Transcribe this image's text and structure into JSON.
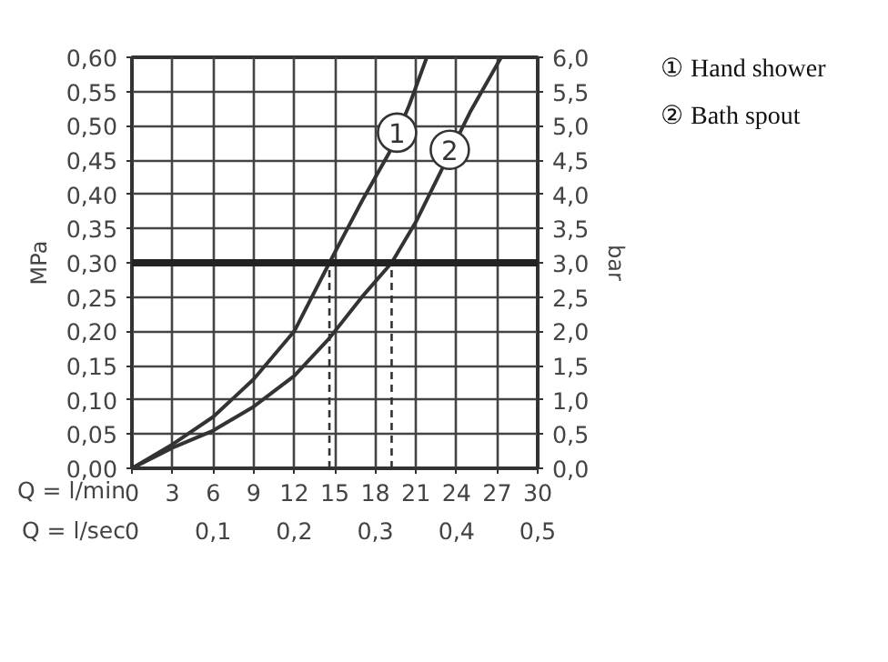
{
  "chart_data": {
    "type": "line",
    "xlabel": "Q = l/min",
    "x2label": "Q = l/sec",
    "ylabel": "MPa",
    "y2label": "bar",
    "xlim": [
      0,
      30
    ],
    "xticks": [
      0,
      3,
      6,
      9,
      12,
      15,
      18,
      21,
      24,
      27,
      30
    ],
    "x2lim": [
      0,
      0.5
    ],
    "x2ticks": [
      {
        "value": 0,
        "label": "0"
      },
      {
        "value": 0.1,
        "label": "0,1"
      },
      {
        "value": 0.2,
        "label": "0,2"
      },
      {
        "value": 0.3,
        "label": "0,3"
      },
      {
        "value": 0.4,
        "label": "0,4"
      },
      {
        "value": 0.5,
        "label": "0,5"
      }
    ],
    "ylim": [
      0,
      0.6
    ],
    "yticks": [
      {
        "value": 0,
        "label": "0,00"
      },
      {
        "value": 0.05,
        "label": "0,05"
      },
      {
        "value": 0.1,
        "label": "0,10"
      },
      {
        "value": 0.15,
        "label": "0,15"
      },
      {
        "value": 0.2,
        "label": "0,20"
      },
      {
        "value": 0.25,
        "label": "0,25"
      },
      {
        "value": 0.3,
        "label": "0,30"
      },
      {
        "value": 0.35,
        "label": "0,35"
      },
      {
        "value": 0.4,
        "label": "0,40"
      },
      {
        "value": 0.45,
        "label": "0,45"
      },
      {
        "value": 0.5,
        "label": "0,50"
      },
      {
        "value": 0.55,
        "label": "0,55"
      },
      {
        "value": 0.6,
        "label": "0,60"
      }
    ],
    "y2lim": [
      0,
      6
    ],
    "y2ticks": [
      {
        "value": 0,
        "label": "0,0"
      },
      {
        "value": 0.5,
        "label": "0,5"
      },
      {
        "value": 1,
        "label": "1,0"
      },
      {
        "value": 1.5,
        "label": "1,5"
      },
      {
        "value": 2,
        "label": "2,0"
      },
      {
        "value": 2.5,
        "label": "2,5"
      },
      {
        "value": 3,
        "label": "3,0"
      },
      {
        "value": 3.5,
        "label": "3,5"
      },
      {
        "value": 4,
        "label": "4,0"
      },
      {
        "value": 4.5,
        "label": "4,5"
      },
      {
        "value": 5,
        "label": "5,0"
      },
      {
        "value": 5.5,
        "label": "5,5"
      },
      {
        "value": 6,
        "label": "6,0"
      }
    ],
    "grid": true,
    "legend": "right",
    "series": [
      {
        "name": "① Hand shower",
        "color": "#333333",
        "x": [
          0,
          3,
          6,
          9,
          12,
          14.6,
          17,
          19,
          20.5,
          21.8
        ],
        "values": [
          0,
          0.035,
          0.075,
          0.13,
          0.2,
          0.3,
          0.39,
          0.46,
          0.53,
          0.6
        ]
      },
      {
        "name": "② Bath spout",
        "color": "#333333",
        "x": [
          0,
          3,
          6,
          9,
          12,
          14.6,
          17,
          19.2,
          21,
          23,
          25,
          27.3
        ],
        "values": [
          0,
          0.03,
          0.055,
          0.09,
          0.135,
          0.19,
          0.25,
          0.3,
          0.36,
          0.44,
          0.52,
          0.6
        ]
      }
    ],
    "ref_lines": [
      {
        "axis": "y",
        "value": 0.3,
        "color": "#222222",
        "line_style": "solid"
      },
      {
        "axis": "x",
        "value": 14.6,
        "color": "#333333",
        "line_style": "dashed"
      },
      {
        "axis": "x",
        "value": 19.2,
        "color": "#333333",
        "line_style": "dashed"
      }
    ],
    "annotations": [
      {
        "text": "1",
        "x": 19.6,
        "y": 0.49
      },
      {
        "text": "2",
        "x": 23.5,
        "y": 0.465
      }
    ]
  }
}
